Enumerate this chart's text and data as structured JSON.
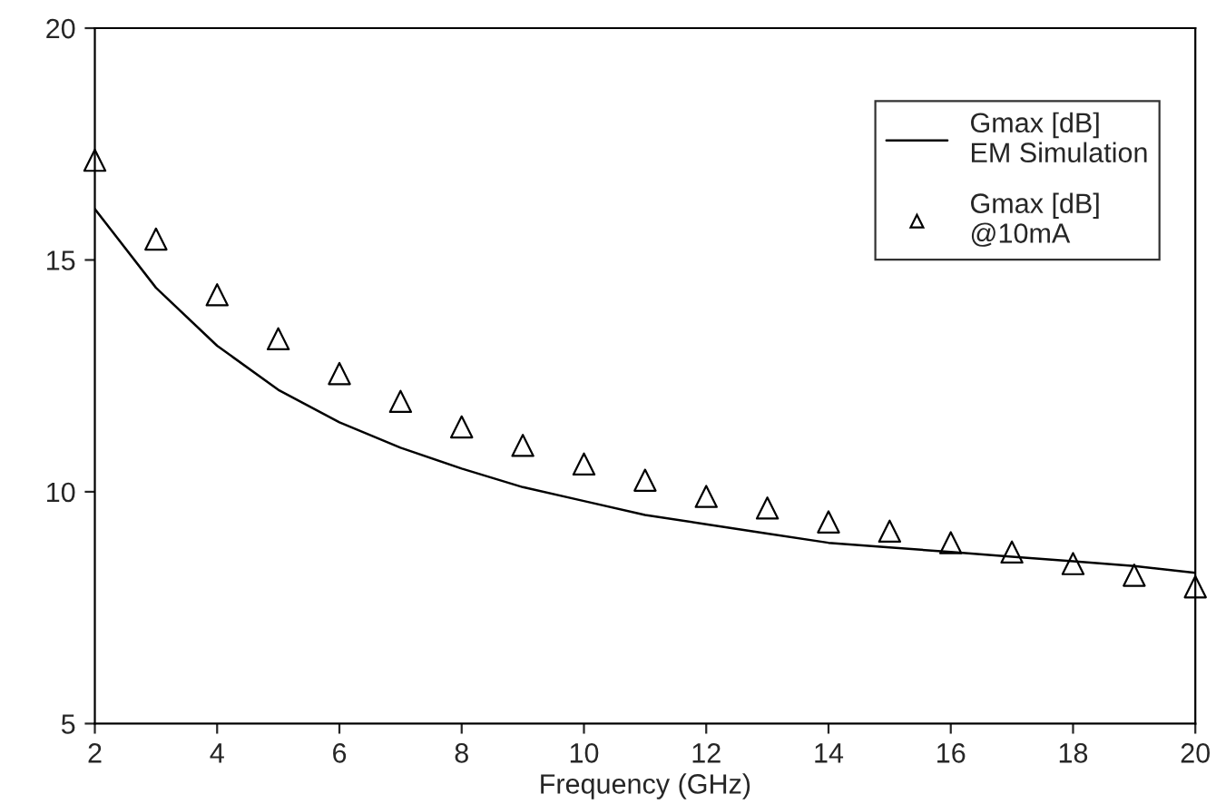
{
  "chart_data": {
    "type": "line",
    "xlabel": "Frequency (GHz)",
    "x": [
      2,
      3,
      4,
      5,
      6,
      7,
      8,
      9,
      10,
      11,
      12,
      13,
      14,
      15,
      16,
      17,
      18,
      19,
      20
    ],
    "series": [
      {
        "name": "Gmax [dB]\nEM Simulation",
        "marker": "none",
        "line_style": "solid",
        "color": "#000000",
        "values": [
          16.1,
          14.4,
          13.15,
          12.2,
          11.5,
          10.95,
          10.5,
          10.1,
          9.8,
          9.5,
          9.3,
          9.1,
          8.9,
          8.8,
          8.7,
          8.6,
          8.5,
          8.4,
          8.25
        ]
      },
      {
        "name": "Gmax [dB]\n@10mA",
        "type": "scatter",
        "marker": "triangle",
        "color": "#000000",
        "values": [
          17.15,
          15.45,
          14.25,
          13.3,
          12.55,
          11.95,
          11.4,
          11.0,
          10.6,
          10.25,
          9.9,
          9.65,
          9.35,
          9.15,
          8.9,
          8.7,
          8.45,
          8.2,
          7.95
        ]
      }
    ],
    "xlim": [
      2,
      20
    ],
    "xticks": [
      2,
      4,
      6,
      8,
      10,
      12,
      14,
      16,
      18,
      20
    ],
    "ylim": [
      5,
      20
    ],
    "yticks": [
      5,
      10,
      15,
      20
    ],
    "grid": false,
    "legend": "top right"
  }
}
